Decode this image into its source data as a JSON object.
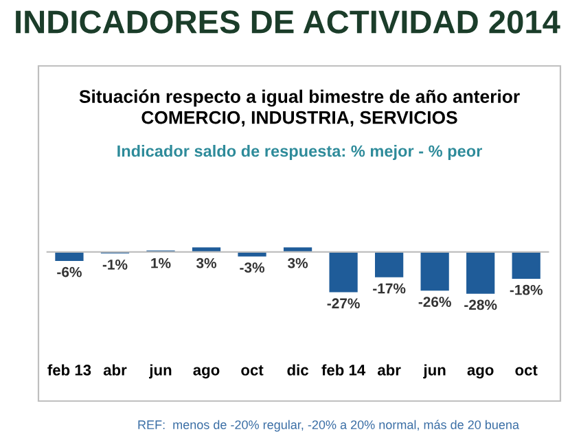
{
  "chart_data": {
    "type": "bar",
    "title": "INDICADORES DE ACTIVIDAD 2014",
    "subtitle": "Situación respecto a igual bimestre de año anterior\nCOMERCIO, INDUSTRIA, SERVICIOS",
    "annotations": [
      "Indicador saldo de respuesta: % mejor - % peor",
      "REF:  menos de -20% regular, -20% a 20% normal, más de 20 buena"
    ],
    "categories": [
      "feb 13",
      "abr",
      "jun",
      "ago",
      "oct",
      "dic",
      "feb 14",
      "abr",
      "jun",
      "ago",
      "oct"
    ],
    "values": [
      -6,
      -1,
      1,
      3,
      -3,
      3,
      -27,
      -17,
      -26,
      -28,
      -18
    ],
    "color": "#1f5c99",
    "value_labels": [
      "-6%",
      "-1%",
      "1%",
      "3%",
      "-3%",
      "3%",
      "-27%",
      "-17%",
      "-26%",
      "-28%",
      "-18%"
    ],
    "grid": false,
    "legend": false
  }
}
